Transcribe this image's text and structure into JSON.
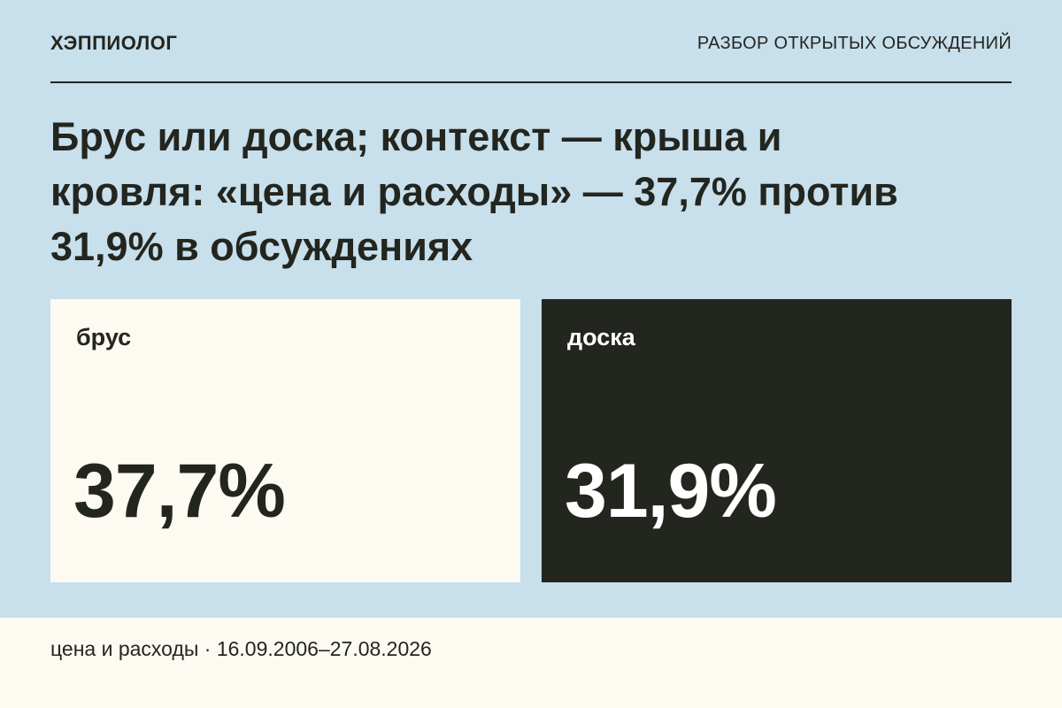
{
  "header": {
    "brand": "ХЭППИОЛОГ",
    "section": "РАЗБОР ОТКРЫТЫХ ОБСУЖДЕНИЙ"
  },
  "headline": "Брус или доска; контекст — крыша и кровля: «цена и расходы» — 37,7% против 31,9% в обсуждениях",
  "cards": [
    {
      "label": "брус",
      "value": "37,7%"
    },
    {
      "label": "доска",
      "value": "31,9%"
    }
  ],
  "footer": "цена и расходы · 16.09.2006–27.08.2026"
}
